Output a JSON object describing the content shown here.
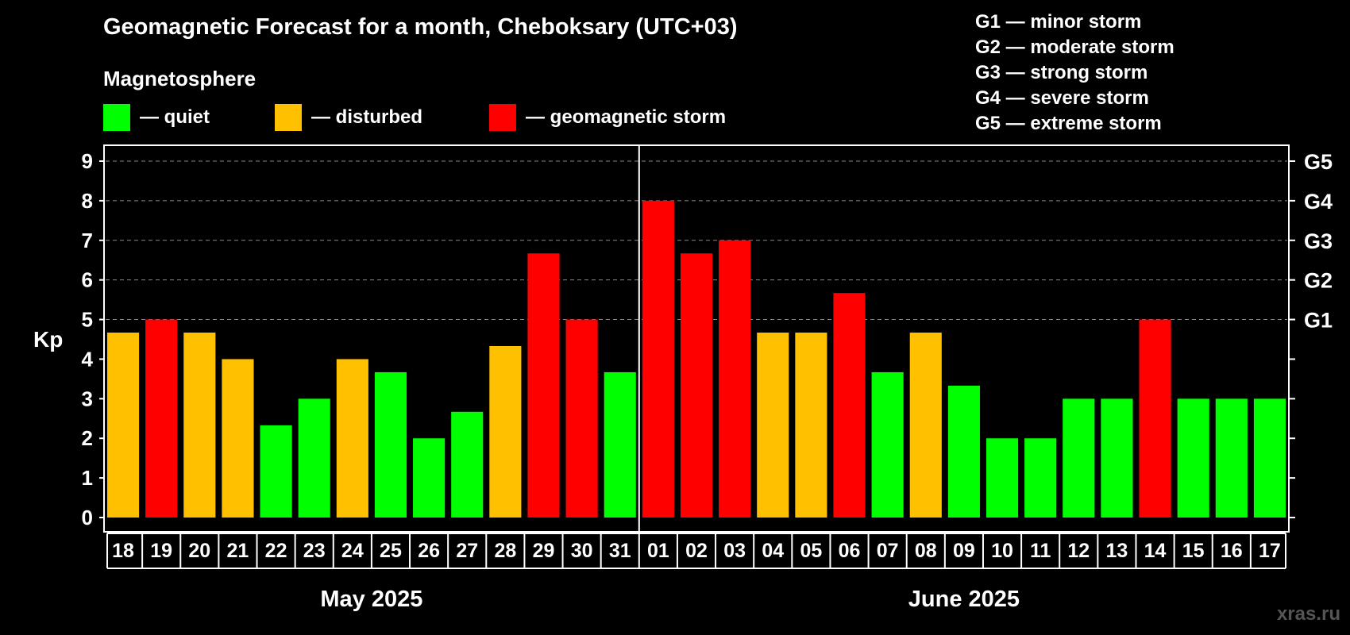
{
  "title": "Geomagnetic Forecast for a month, Cheboksary (UTC+03)",
  "legend": {
    "heading": "Magnetosphere",
    "items": [
      {
        "label": "— quiet",
        "color": "#00ff00"
      },
      {
        "label": "— disturbed",
        "color": "#ffc000"
      },
      {
        "label": "— geomagnetic storm",
        "color": "#ff0000"
      }
    ]
  },
  "storm_scale": [
    "G1 — minor storm",
    "G2 — moderate storm",
    "G3 — strong storm",
    "G4 — severe storm",
    "G5 — extreme storm"
  ],
  "watermark": "xras.ru",
  "chart_data": {
    "type": "bar",
    "title": "Geomagnetic Forecast for a month, Cheboksary (UTC+03)",
    "ylabel": "Kp",
    "ylim": [
      0,
      9
    ],
    "yticks": [
      "0",
      "1",
      "2",
      "3",
      "4",
      "5",
      "6",
      "7",
      "8",
      "9"
    ],
    "right_axis_labels": [
      {
        "kp": 5,
        "label": "G1"
      },
      {
        "kp": 6,
        "label": "G2"
      },
      {
        "kp": 7,
        "label": "G3"
      },
      {
        "kp": 8,
        "label": "G4"
      },
      {
        "kp": 9,
        "label": "G5"
      }
    ],
    "grid": "horizontal dashed above 5",
    "months": [
      {
        "label": "May 2025",
        "days": 14
      },
      {
        "label": "June 2025",
        "days": 17
      }
    ],
    "categories": [
      "18",
      "19",
      "20",
      "21",
      "22",
      "23",
      "24",
      "25",
      "26",
      "27",
      "28",
      "29",
      "30",
      "31",
      "01",
      "02",
      "03",
      "04",
      "05",
      "06",
      "07",
      "08",
      "09",
      "10",
      "11",
      "12",
      "13",
      "14",
      "15",
      "16",
      "17"
    ],
    "values": [
      4.67,
      5,
      4.67,
      4,
      2.33,
      3,
      4,
      3.67,
      2,
      2.67,
      4.33,
      6.67,
      5,
      3.67,
      8,
      6.67,
      7,
      4.67,
      4.67,
      5.67,
      3.67,
      4.67,
      3.33,
      2,
      2,
      3,
      3,
      5,
      3,
      3,
      3
    ],
    "levels": [
      "disturbed",
      "storm",
      "disturbed",
      "disturbed",
      "quiet",
      "quiet",
      "disturbed",
      "quiet",
      "quiet",
      "quiet",
      "disturbed",
      "storm",
      "storm",
      "quiet",
      "storm",
      "storm",
      "storm",
      "disturbed",
      "disturbed",
      "storm",
      "quiet",
      "disturbed",
      "quiet",
      "quiet",
      "quiet",
      "quiet",
      "quiet",
      "storm",
      "quiet",
      "quiet",
      "quiet"
    ]
  }
}
